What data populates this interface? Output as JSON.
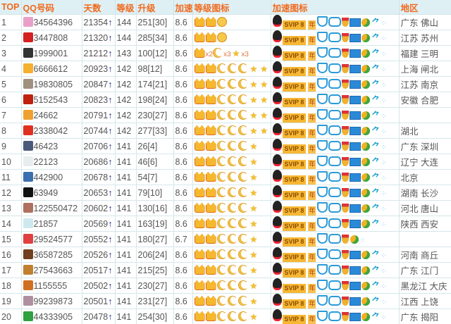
{
  "headers": [
    "TOP",
    "QQ号码",
    "天数",
    "等级",
    "升级",
    "加速",
    "等级图标",
    "加速图标",
    "地区"
  ],
  "colors": {
    "header_bg": "#dff0f4",
    "header_text": "#f06a1e",
    "arrow": "#1a2a8a"
  },
  "day_arrow": "↑",
  "speed_labels": {
    "svip": "SVIP 8",
    "year": "年"
  },
  "rows": [
    {
      "top": "1",
      "qq": "34564396",
      "days": "21354",
      "level": "144",
      "upgrade": "251[30]",
      "speed": "8.6",
      "level_icons": "crown,crown,sun",
      "speed_icons": "full",
      "region": "广东 佛山",
      "avatar": "#e8a0c8"
    },
    {
      "top": "2",
      "qq": "3447808",
      "days": "21320",
      "level": "144",
      "upgrade": "285[34]",
      "speed": "8.6",
      "level_icons": "crown,crown,sun",
      "speed_icons": "full",
      "region": "江苏 苏州",
      "avatar": "#d42020"
    },
    {
      "top": "3",
      "qq": "1999001",
      "days": "21212",
      "level": "143",
      "upgrade": "100[12]",
      "speed": "8.6",
      "level_icons": "crown,x2,moon,x3,star,x3",
      "speed_icons": "full",
      "region": "福建 三明",
      "avatar": "#333"
    },
    {
      "top": "4",
      "qq": "6666612",
      "days": "20923",
      "level": "142",
      "upgrade": "98[12]",
      "speed": "8.6",
      "level_icons": "crown,crown,moon,moon,moon,star,star",
      "speed_icons": "full",
      "region": "上海 闸北",
      "avatar": "#f5b030"
    },
    {
      "top": "5",
      "qq": "19830805",
      "days": "20847",
      "level": "142",
      "upgrade": "174[21]",
      "speed": "8.6",
      "level_icons": "crown,crown,moon,moon,moon,star,star",
      "speed_icons": "full",
      "region": "江苏 南京",
      "avatar": "#a09080"
    },
    {
      "top": "6",
      "qq": "5152543",
      "days": "20823",
      "level": "142",
      "upgrade": "198[24]",
      "speed": "8.6",
      "level_icons": "crown,crown,moon,moon,moon,star,star",
      "speed_icons": "full",
      "region": "安徽 合肥",
      "avatar": "#c02010"
    },
    {
      "top": "7",
      "qq": "24662",
      "days": "20791",
      "level": "142",
      "upgrade": "230[27]",
      "speed": "8.6",
      "level_icons": "crown,crown,moon,moon,moon,star,star",
      "speed_icons": "full",
      "region": "",
      "avatar": "#f0a030"
    },
    {
      "top": "8",
      "qq": "2338042",
      "days": "20744",
      "level": "142",
      "upgrade": "277[33]",
      "speed": "8.6",
      "level_icons": "crown,crown,moon,moon,moon,star,star",
      "speed_icons": "full",
      "region": "湖北",
      "avatar": "#e03020"
    },
    {
      "top": "9",
      "qq": "46423",
      "days": "20706",
      "level": "141",
      "upgrade": "26[4]",
      "speed": "8.6",
      "level_icons": "crown,crown,moon,moon,moon,star",
      "speed_icons": "full",
      "region": "广东 深圳",
      "avatar": "#4a5a7a"
    },
    {
      "top": "10",
      "qq": "22123",
      "days": "20686",
      "level": "141",
      "upgrade": "46[6]",
      "speed": "8.6",
      "level_icons": "crown,crown,moon,moon,moon,star",
      "speed_icons": "full",
      "region": "辽宁 大连",
      "avatar": "#e8eef0"
    },
    {
      "top": "11",
      "qq": "442900",
      "days": "20678",
      "level": "141",
      "upgrade": "54[7]",
      "speed": "8.6",
      "level_icons": "crown,crown,moon,moon,moon,star",
      "speed_icons": "full",
      "region": "北京",
      "avatar": "#3a70b0"
    },
    {
      "top": "12",
      "qq": "63949",
      "days": "20653",
      "level": "141",
      "upgrade": "79[10]",
      "speed": "8.6",
      "level_icons": "crown,crown,moon,moon,moon,star",
      "speed_icons": "full",
      "region": "湖南 长沙",
      "avatar": "#111"
    },
    {
      "top": "13",
      "qq": "122550472",
      "days": "20602",
      "level": "141",
      "upgrade": "130[16]",
      "speed": "8.6",
      "level_icons": "crown,crown,moon,moon,moon,star",
      "speed_icons": "full",
      "region": "河北 唐山",
      "avatar": "#b07060"
    },
    {
      "top": "14",
      "qq": "21857",
      "days": "20569",
      "level": "141",
      "upgrade": "163[19]",
      "speed": "8.6",
      "level_icons": "crown,crown,moon,moon,moon,star",
      "speed_icons": "full",
      "region": "陕西 西安",
      "avatar": "#cfe8f0"
    },
    {
      "top": "15",
      "qq": "29524577",
      "days": "20552",
      "level": "141",
      "upgrade": "180[27]",
      "speed": "6.7",
      "level_icons": "crown,crown,moon,moon,moon,star",
      "speed_icons": "partial",
      "region": "",
      "avatar": "#e04040"
    },
    {
      "top": "16",
      "qq": "36587285",
      "days": "20526",
      "level": "141",
      "upgrade": "206[24]",
      "speed": "8.6",
      "level_icons": "crown,crown,moon,moon,moon,star",
      "speed_icons": "full",
      "region": "河南 商丘",
      "avatar": "#704020"
    },
    {
      "top": "17",
      "qq": "27543663",
      "days": "20517",
      "level": "141",
      "upgrade": "215[25]",
      "speed": "8.6",
      "level_icons": "crown,crown,moon,moon,moon,star",
      "speed_icons": "full",
      "region": "广东 江门",
      "avatar": "#c08030"
    },
    {
      "top": "18",
      "qq": "1155555",
      "days": "20502",
      "level": "141",
      "upgrade": "230[27]",
      "speed": "8.6",
      "level_icons": "crown,crown,moon,moon,moon,star",
      "speed_icons": "full",
      "region": "黑龙江 大庆",
      "avatar": "#d07020"
    },
    {
      "top": "19",
      "qq": "99239873",
      "days": "20501",
      "level": "141",
      "upgrade": "231[27]",
      "speed": "8.6",
      "level_icons": "crown,crown,moon,moon,moon,star",
      "speed_icons": "full",
      "region": "江西 上饶",
      "avatar": "#b090a0"
    },
    {
      "top": "20",
      "qq": "44333905",
      "days": "20478",
      "level": "141",
      "upgrade": "254[30]",
      "speed": "8.6",
      "level_icons": "crown,crown,moon,moon,moon,star",
      "speed_icons": "full",
      "region": "广东 揭阳",
      "avatar": "#30a040"
    }
  ]
}
